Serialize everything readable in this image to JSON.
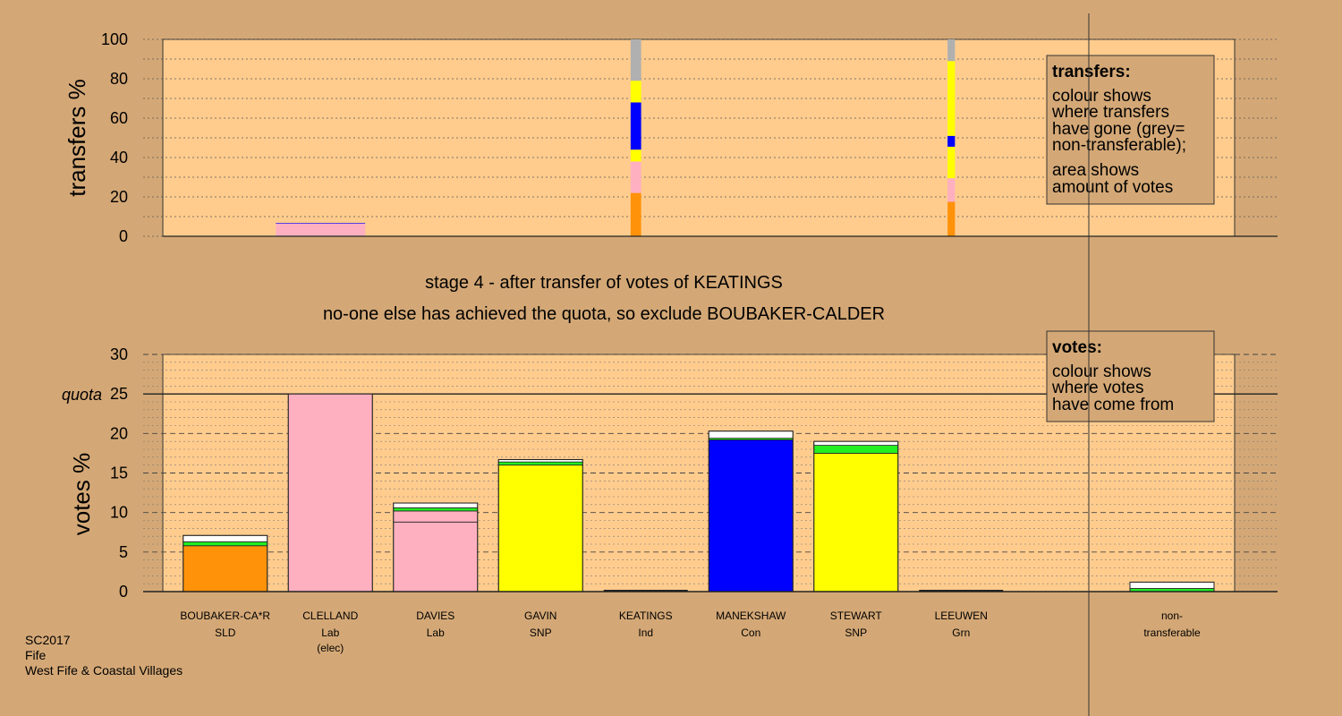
{
  "footer": [
    "SC2017",
    "Fife",
    "West Fife & Coastal Villages"
  ],
  "messages": {
    "stage": "stage 4 - after transfer of votes of KEATINGS",
    "action": "no-one else has achieved the quota, so exclude BOUBAKER-CALDER"
  },
  "legend_transfers": {
    "title": "transfers:",
    "lines": [
      "colour shows",
      "where transfers",
      "have gone (grey=",
      "non-transferable);",
      "area shows",
      "amount of votes"
    ]
  },
  "legend_votes": {
    "title": "votes:",
    "lines": [
      "colour shows",
      "where votes",
      "have come from"
    ]
  },
  "colors": {
    "SLD": "#FF9209",
    "Lab": "#FFB0C0",
    "SNP": "#FFFF00",
    "Con": "#0000FF",
    "Grn": "#22EE22",
    "Ind": "#FFFFFF",
    "nontransferable": "#B0B0B0",
    "plot_bg": "#FFCC8E",
    "page_bg": "#D4A876"
  },
  "chart_data": [
    {
      "type": "bar",
      "name": "transfers",
      "ylabel": "transfers %",
      "ylim": [
        0,
        100
      ],
      "yticks": [
        0,
        20,
        40,
        60,
        80,
        100
      ],
      "bars": [
        {
          "index": 1,
          "width_fraction": 0.85,
          "segments": [
            {
              "party": "Lab",
              "value": 6.5
            },
            {
              "party": "Con",
              "value": 0.3
            }
          ]
        },
        {
          "index": 4,
          "width_fraction": 0.1,
          "segments": [
            {
              "party": "SLD",
              "value": 22
            },
            {
              "party": "Lab",
              "value": 16
            },
            {
              "party": "SNP",
              "value": 6
            },
            {
              "party": "Con",
              "value": 24
            },
            {
              "party": "SNP",
              "value": 11
            },
            {
              "party": "nontransferable",
              "value": 21
            }
          ]
        },
        {
          "index": 7,
          "width_fraction": 0.07,
          "segments": [
            {
              "party": "SLD",
              "value": 17.5
            },
            {
              "party": "Lab",
              "value": 12
            },
            {
              "party": "SNP",
              "value": 16
            },
            {
              "party": "Con",
              "value": 5.5
            },
            {
              "party": "SNP",
              "value": 38
            },
            {
              "party": "nontransferable",
              "value": 11
            }
          ]
        }
      ]
    },
    {
      "type": "bar",
      "name": "votes",
      "ylabel": "votes %",
      "ylim": [
        0,
        30
      ],
      "yticks": [
        0,
        5,
        10,
        15,
        20,
        25,
        30
      ],
      "quota": 25,
      "quota_label": "quota",
      "candidates": [
        {
          "name": "BOUBAKER-CA*R",
          "party": "SLD",
          "extra": "",
          "segments": [
            {
              "party": "SLD",
              "value": 5.8
            },
            {
              "party": "Grn",
              "value": 0.5
            },
            {
              "party": "Ind",
              "value": 0.8
            }
          ]
        },
        {
          "name": "CLELLAND",
          "party": "Lab",
          "extra": "(elec)",
          "segments": [
            {
              "party": "Lab",
              "value": 25.0
            }
          ]
        },
        {
          "name": "DAVIES",
          "party": "Lab",
          "extra": "",
          "segments": [
            {
              "party": "Lab",
              "value": 8.8
            },
            {
              "party": "Lab",
              "value": 1.4
            },
            {
              "party": "Grn",
              "value": 0.4
            },
            {
              "party": "Ind",
              "value": 0.6
            }
          ]
        },
        {
          "name": "GAVIN",
          "party": "SNP",
          "extra": "",
          "segments": [
            {
              "party": "SNP",
              "value": 16.0
            },
            {
              "party": "Grn",
              "value": 0.4
            },
            {
              "party": "Ind",
              "value": 0.3
            }
          ]
        },
        {
          "name": "KEATINGS",
          "party": "Ind",
          "extra": "",
          "segments": []
        },
        {
          "name": "MANEKSHAW",
          "party": "Con",
          "extra": "",
          "segments": [
            {
              "party": "Con",
              "value": 19.2
            },
            {
              "party": "Grn",
              "value": 0.2
            },
            {
              "party": "Ind",
              "value": 0.9
            }
          ]
        },
        {
          "name": "STEWART",
          "party": "SNP",
          "extra": "",
          "segments": [
            {
              "party": "SNP",
              "value": 17.5
            },
            {
              "party": "Grn",
              "value": 1.0
            },
            {
              "party": "Ind",
              "value": 0.5
            }
          ]
        },
        {
          "name": "LEEUWEN",
          "party": "Grn",
          "extra": "",
          "segments": []
        }
      ],
      "nontransferable": {
        "label": [
          "non-",
          "transferable"
        ],
        "segments": [
          {
            "party": "Grn",
            "value": 0.4
          },
          {
            "party": "Ind",
            "value": 0.8
          }
        ]
      }
    }
  ]
}
